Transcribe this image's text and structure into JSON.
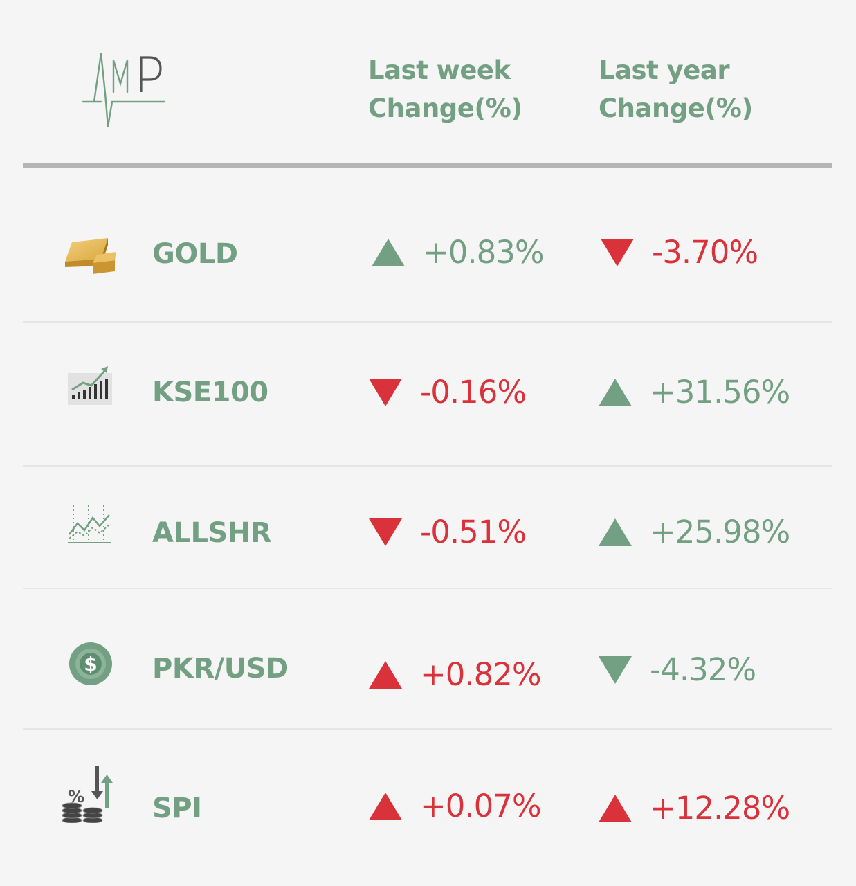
{
  "logo": {
    "text": "AMP",
    "name": "amp-logo"
  },
  "headers": {
    "week": [
      "Last week",
      "Change(%)"
    ],
    "year": [
      "Last year",
      "Change(%)"
    ]
  },
  "colors": {
    "green": "#73a083",
    "red": "#d9323a",
    "background": "#f5f5f5",
    "rule": "#b5b5b5"
  },
  "rows": [
    {
      "name": "GOLD",
      "icon": "gold-bar-icon",
      "week": {
        "value": "+0.83%",
        "direction": "up",
        "color": "green"
      },
      "year": {
        "value": "-3.70%",
        "direction": "down",
        "color": "red"
      }
    },
    {
      "name": "KSE100",
      "icon": "bar-chart-growth-icon",
      "week": {
        "value": "-0.16%",
        "direction": "down",
        "color": "red"
      },
      "year": {
        "value": "+31.56%",
        "direction": "up",
        "color": "green"
      }
    },
    {
      "name": "ALLSHR",
      "icon": "line-chart-icon",
      "week": {
        "value": "-0.51%",
        "direction": "down",
        "color": "red"
      },
      "year": {
        "value": "+25.98%",
        "direction": "up",
        "color": "green"
      }
    },
    {
      "name": "PKR/USD",
      "icon": "dollar-coin-icon",
      "week": {
        "value": "+0.82%",
        "direction": "up",
        "color": "red"
      },
      "year": {
        "value": "-4.32%",
        "direction": "down",
        "color": "green"
      }
    },
    {
      "name": "SPI",
      "icon": "percent-coins-icon",
      "week": {
        "value": "+0.07%",
        "direction": "up",
        "color": "red"
      },
      "year": {
        "value": "+12.28%",
        "direction": "up",
        "color": "red"
      }
    }
  ]
}
